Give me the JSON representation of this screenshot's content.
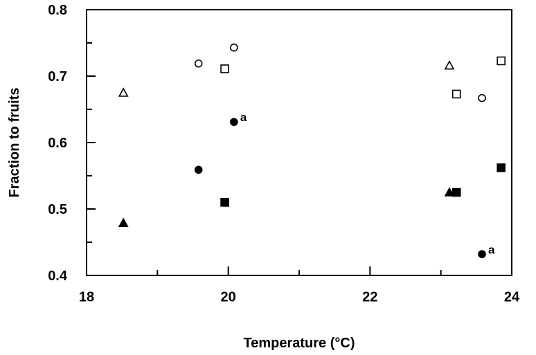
{
  "chart_data": {
    "type": "scatter",
    "title": "",
    "xlabel": "Temperature (°C)",
    "ylabel": "Fraction to fruits",
    "xlim": [
      18,
      24
    ],
    "ylim": [
      0.4,
      0.8
    ],
    "xticks": [
      18,
      20,
      22,
      24
    ],
    "xtick_labels": [
      "18",
      "20",
      "22",
      "24"
    ],
    "yticks": [
      0.4,
      0.5,
      0.6,
      0.7,
      0.8
    ],
    "ytick_labels": [
      "0.4",
      "0.5",
      "0.6",
      "0.7",
      "0.8"
    ],
    "grid": false,
    "series": [
      {
        "marker": "triangle",
        "filled": false,
        "points": [
          [
            18.52,
            0.675
          ],
          [
            23.12,
            0.716
          ]
        ]
      },
      {
        "marker": "circle",
        "filled": false,
        "points": [
          [
            19.58,
            0.719
          ],
          [
            20.08,
            0.743
          ],
          [
            23.58,
            0.667
          ]
        ]
      },
      {
        "marker": "square",
        "filled": false,
        "points": [
          [
            19.95,
            0.711
          ],
          [
            23.22,
            0.673
          ],
          [
            23.85,
            0.723
          ]
        ]
      },
      {
        "marker": "triangle",
        "filled": true,
        "points": [
          [
            18.52,
            0.479
          ],
          [
            23.12,
            0.525
          ]
        ]
      },
      {
        "marker": "circle",
        "filled": true,
        "points": [
          [
            19.58,
            0.559
          ],
          [
            20.08,
            0.631
          ],
          [
            23.58,
            0.432
          ]
        ]
      },
      {
        "marker": "square",
        "filled": true,
        "points": [
          [
            19.95,
            0.51
          ],
          [
            23.22,
            0.525
          ],
          [
            23.85,
            0.562
          ]
        ]
      }
    ],
    "annotations": [
      {
        "text": "a",
        "x": 20.08,
        "y": 0.631
      },
      {
        "text": "a",
        "x": 23.58,
        "y": 0.432
      }
    ]
  }
}
